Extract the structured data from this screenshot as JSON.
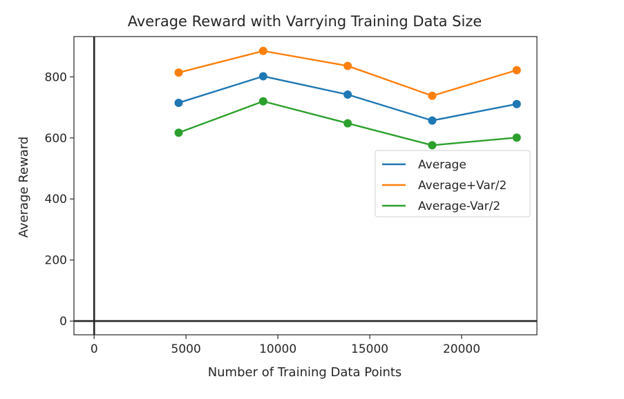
{
  "chart_data": {
    "type": "line",
    "title": "Average Reward with Varrying Training Data Size",
    "xlabel": "Number of Training Data Points",
    "ylabel": "Average Reward",
    "x": [
      4600,
      9200,
      13800,
      18400,
      23000
    ],
    "series": [
      {
        "name": "Average",
        "values": [
          715,
          802,
          742,
          657,
          711
        ],
        "color": "#1f77b4"
      },
      {
        "name": "Average+Var/2",
        "values": [
          814,
          885,
          836,
          738,
          822
        ],
        "color": "#ff7f0e"
      },
      {
        "name": "Average-Var/2",
        "values": [
          617,
          720,
          648,
          576,
          601
        ],
        "color": "#2ca02c"
      }
    ],
    "xlim": [
      -1100,
      24100
    ],
    "ylim": [
      -45,
      932
    ],
    "xticks": [
      0,
      5000,
      10000,
      15000,
      20000
    ],
    "yticks": [
      0,
      200,
      400,
      600,
      800
    ],
    "reference_lines": {
      "x": 0,
      "y": 0
    },
    "grid": false,
    "legend_position": "center-right",
    "markers": "circle"
  }
}
